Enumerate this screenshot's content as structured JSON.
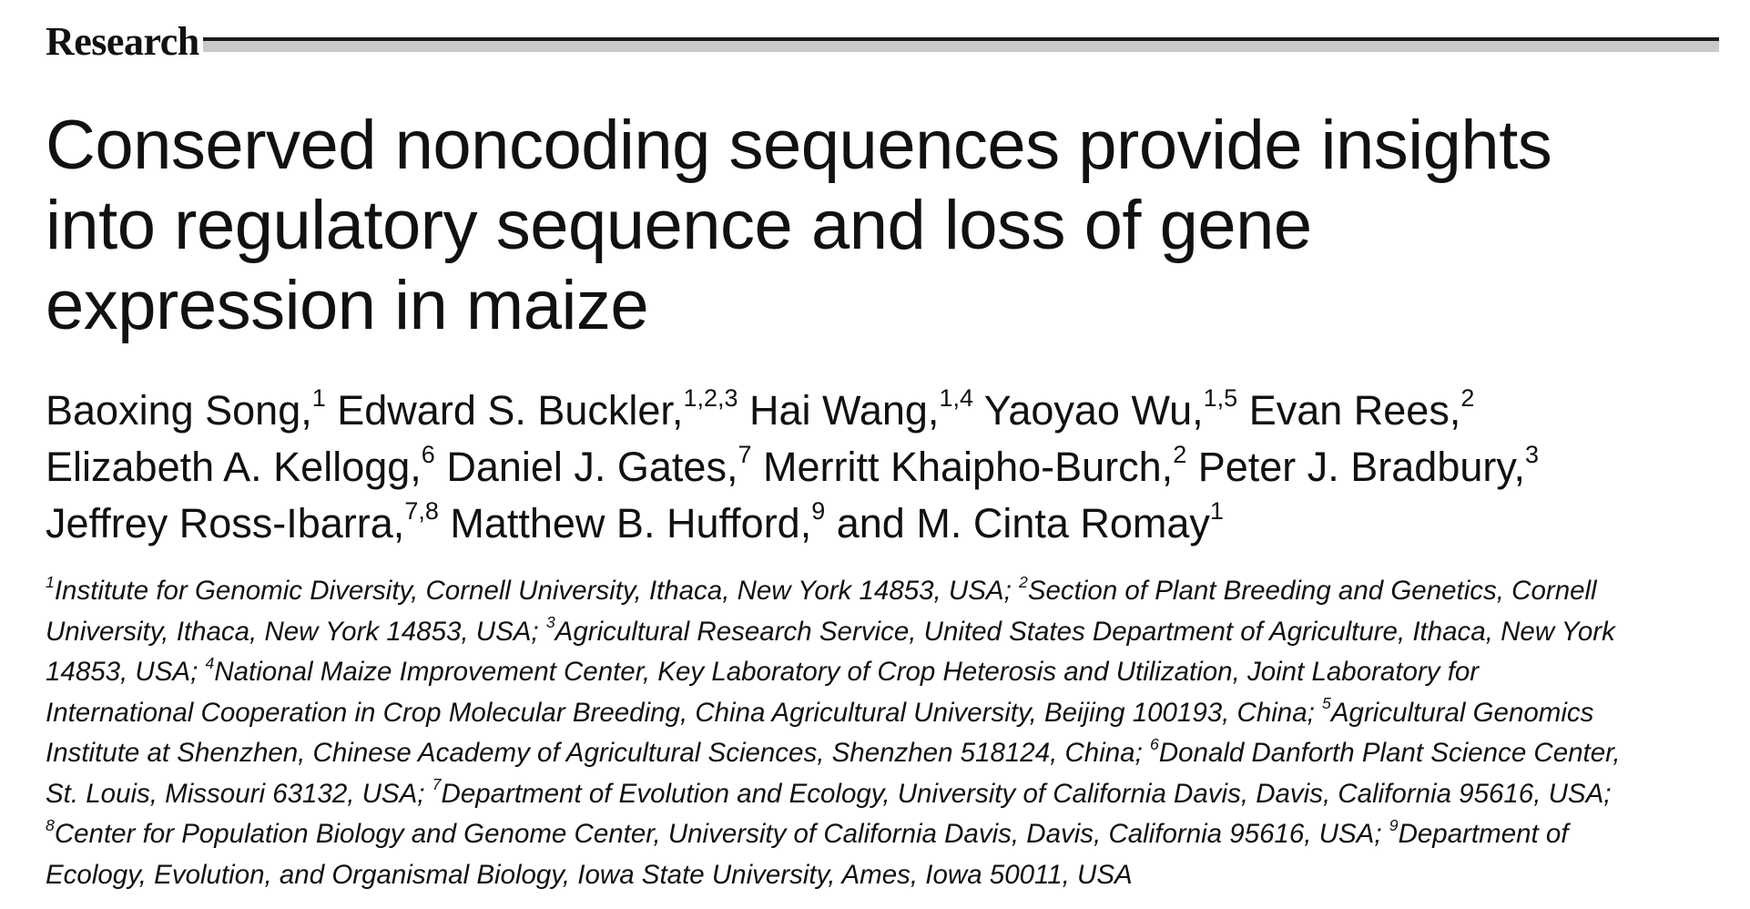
{
  "section": {
    "label": "Research"
  },
  "title": {
    "lines": [
      "Conserved noncoding sequences provide insights",
      "into regulatory sequence and loss of gene",
      "expression in maize"
    ]
  },
  "authors": {
    "lines": [
      [
        {
          "text": "Baoxing Song,"
        },
        {
          "sup": "1"
        },
        {
          "text": " Edward S. Buckler,"
        },
        {
          "sup": "1,2,3"
        },
        {
          "text": " Hai Wang,"
        },
        {
          "sup": "1,4"
        },
        {
          "text": " Yaoyao Wu,"
        },
        {
          "sup": "1,5"
        },
        {
          "text": " Evan Rees,"
        },
        {
          "sup": "2"
        }
      ],
      [
        {
          "text": "Elizabeth A. Kellogg,"
        },
        {
          "sup": "6"
        },
        {
          "text": " Daniel J. Gates,"
        },
        {
          "sup": "7"
        },
        {
          "text": " Merritt Khaipho-Burch,"
        },
        {
          "sup": "2"
        },
        {
          "text": " Peter J. Bradbury,"
        },
        {
          "sup": "3"
        }
      ],
      [
        {
          "text": "Jeffrey Ross-Ibarra,"
        },
        {
          "sup": "7,8"
        },
        {
          "text": " Matthew B. Hufford,"
        },
        {
          "sup": "9"
        },
        {
          "text": " and M. Cinta Romay"
        },
        {
          "sup": "1"
        }
      ]
    ]
  },
  "affiliations": {
    "lines": [
      [
        {
          "sup": "1"
        },
        {
          "text": "Institute for Genomic Diversity, Cornell University, Ithaca, New York 14853, USA; "
        },
        {
          "sup": "2"
        },
        {
          "text": "Section of Plant Breeding and Genetics, Cornell"
        }
      ],
      [
        {
          "text": "University, Ithaca, New York 14853, USA; "
        },
        {
          "sup": "3"
        },
        {
          "text": "Agricultural Research Service, United States Department of Agriculture, Ithaca, New York"
        }
      ],
      [
        {
          "text": "14853, USA; "
        },
        {
          "sup": "4"
        },
        {
          "text": "National Maize Improvement Center, Key Laboratory of Crop Heterosis and Utilization, Joint Laboratory for"
        }
      ],
      [
        {
          "text": "International Cooperation in Crop Molecular Breeding, China Agricultural University, Beijing 100193, China; "
        },
        {
          "sup": "5"
        },
        {
          "text": "Agricultural Genomics"
        }
      ],
      [
        {
          "text": "Institute at Shenzhen, Chinese Academy of Agricultural Sciences, Shenzhen 518124, China; "
        },
        {
          "sup": "6"
        },
        {
          "text": "Donald Danforth Plant Science Center,"
        }
      ],
      [
        {
          "text": "St. Louis, Missouri 63132, USA; "
        },
        {
          "sup": "7"
        },
        {
          "text": "Department of Evolution and Ecology, University of California Davis, Davis, California 95616, USA;"
        }
      ],
      [
        {
          "sup": "8"
        },
        {
          "text": "Center for Population Biology and Genome Center, University of California Davis, Davis, California 95616, USA; "
        },
        {
          "sup": "9"
        },
        {
          "text": "Department of"
        }
      ],
      [
        {
          "text": "Ecology, Evolution, and Organismal Biology, Iowa State University, Ames, Iowa 50011, USA"
        }
      ]
    ]
  }
}
